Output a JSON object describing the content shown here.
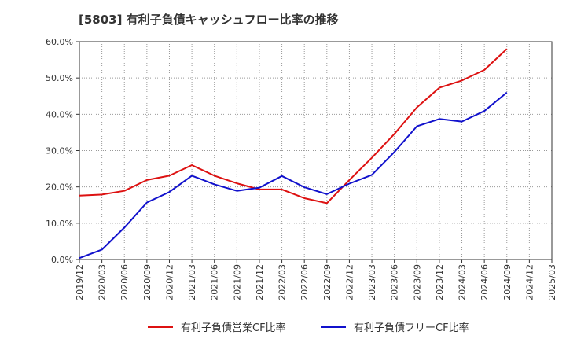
{
  "chart_data": {
    "type": "line",
    "title": "[5803]  有利子負債キャッシュフロー比率の推移",
    "xlabel": "",
    "ylabel": "",
    "x": [
      "2019/12",
      "2020/03",
      "2020/06",
      "2020/09",
      "2020/12",
      "2021/03",
      "2021/06",
      "2021/09",
      "2021/12",
      "2022/03",
      "2022/06",
      "2022/09",
      "2022/12",
      "2023/03",
      "2023/06",
      "2023/09",
      "2023/12",
      "2024/03",
      "2024/06",
      "2024/09",
      "2024/12",
      "2025/03"
    ],
    "ylim": [
      0,
      60
    ],
    "yticks": [
      "0.0%",
      "10.0%",
      "20.0%",
      "30.0%",
      "40.0%",
      "50.0%",
      "60.0%"
    ],
    "grid": true,
    "legend_position": "bottom",
    "series": [
      {
        "name": "有利子負債営業CF比率",
        "color": "#dd1111",
        "values": [
          17.6,
          17.9,
          18.9,
          21.9,
          23.1,
          26.0,
          23.1,
          21.0,
          19.3,
          19.3,
          16.9,
          15.5,
          21.9,
          28.0,
          34.6,
          41.9,
          47.3,
          49.3,
          52.2,
          58.0,
          null,
          null
        ]
      },
      {
        "name": "有利子負債フリーCF比率",
        "color": "#1111cc",
        "values": [
          0.4,
          2.7,
          8.8,
          15.7,
          18.6,
          23.1,
          20.7,
          18.9,
          19.8,
          23.0,
          19.9,
          18.0,
          20.9,
          23.3,
          29.6,
          36.7,
          38.7,
          38.0,
          40.9,
          46.0,
          null,
          null
        ]
      }
    ]
  }
}
